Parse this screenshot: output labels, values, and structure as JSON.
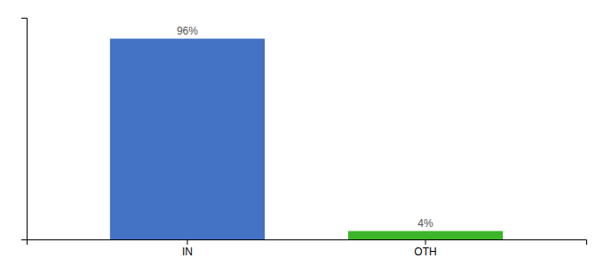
{
  "chart_data": {
    "type": "bar",
    "categories": [
      "IN",
      "OTH"
    ],
    "values": [
      96,
      4
    ],
    "value_labels": [
      "96%",
      "4%"
    ],
    "colors": [
      "#4472c4",
      "#3cb52a"
    ],
    "ylim": [
      0,
      106
    ],
    "data_labels": true,
    "tick_labels": "x",
    "grid": false
  }
}
